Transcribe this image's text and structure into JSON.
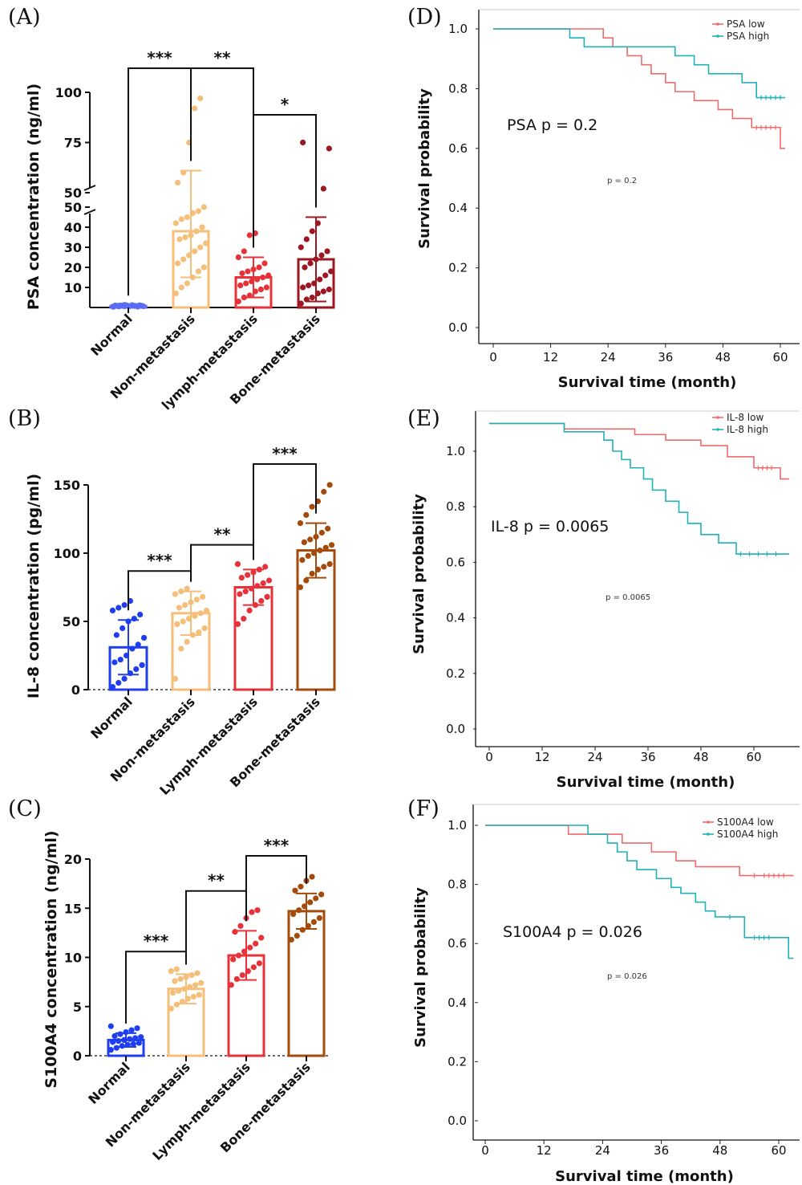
{
  "chart_data": [
    {
      "panel": "(A)",
      "type": "bar",
      "ylabel": "PSA concentration (ng/ml)",
      "categories": [
        "Normal",
        "Non-metastasis",
        "lymph-metastasis",
        "Bone-metastasis"
      ],
      "values": [
        0.8,
        38,
        15,
        24
      ],
      "errors": [
        0.3,
        23,
        10,
        21
      ],
      "colors": [
        "#5b6cf6",
        "#f5be79",
        "#e8323a",
        "#9b1722"
      ],
      "broken_axis": {
        "lower": [
          0,
          50
        ],
        "upper": [
          50,
          100
        ]
      },
      "yticks_lower": [
        "10",
        "20",
        "30",
        "40",
        "50"
      ],
      "yticks_upper": [
        "50",
        "75",
        "100"
      ],
      "points": [
        [
          0.3,
          0.5,
          0.6,
          0.7,
          0.8,
          0.9,
          1.0,
          1.0,
          1.1,
          1.2,
          0.4,
          0.6,
          0.8,
          1.0,
          0.7,
          0.9,
          1.1,
          0.5,
          0.9,
          1.3
        ],
        [
          7,
          10,
          12,
          15,
          18,
          20,
          22,
          24,
          26,
          28,
          30,
          32,
          34,
          35,
          36,
          38,
          40,
          42,
          44,
          45,
          47,
          48,
          50,
          55,
          60,
          75,
          92,
          97
        ],
        [
          3,
          5,
          6,
          8,
          9,
          10,
          11,
          12,
          13,
          14,
          15,
          16,
          17,
          18,
          19,
          20,
          22,
          25,
          28,
          36,
          37
        ],
        [
          2,
          4,
          5,
          7,
          8,
          9,
          10,
          11,
          12,
          14,
          16,
          18,
          20,
          22,
          24,
          26,
          28,
          30,
          34,
          38,
          42,
          52,
          72,
          75
        ]
      ],
      "significance": [
        {
          "from": 0,
          "to": 1,
          "label": "***"
        },
        {
          "from": 1,
          "to": 2,
          "label": "**"
        },
        {
          "from": 2,
          "to": 3,
          "label": "*"
        }
      ]
    },
    {
      "panel": "(B)",
      "type": "bar",
      "ylabel": "IL-8 concentration (pg/ml)",
      "categories": [
        "Normal",
        "Non-metastasis",
        "Lymph-metastasis",
        "Bone-metastasis"
      ],
      "values": [
        31,
        56,
        75,
        102
      ],
      "errors": [
        20,
        16,
        13,
        20
      ],
      "colors": [
        "#1f3ef0",
        "#f5be79",
        "#e8323a",
        "#a44a0a"
      ],
      "ylim": [
        0,
        150
      ],
      "yticks": [
        0,
        50,
        100,
        150
      ],
      "points": [
        [
          2,
          5,
          8,
          12,
          15,
          18,
          20,
          22,
          25,
          30,
          33,
          38,
          40,
          45,
          50,
          52,
          55,
          58,
          60,
          62,
          65
        ],
        [
          8,
          30,
          35,
          40,
          42,
          45,
          48,
          50,
          52,
          54,
          56,
          58,
          60,
          62,
          64,
          66,
          68,
          70,
          72,
          74
        ],
        [
          48,
          52,
          58,
          62,
          65,
          68,
          70,
          72,
          74,
          76,
          78,
          80,
          82,
          84,
          86,
          88,
          90,
          92
        ],
        [
          75,
          80,
          85,
          88,
          90,
          92,
          95,
          98,
          100,
          102,
          104,
          106,
          108,
          110,
          112,
          115,
          118,
          122,
          128,
          134,
          138,
          145,
          150
        ]
      ],
      "significance": [
        {
          "from": 0,
          "to": 1,
          "label": "***"
        },
        {
          "from": 1,
          "to": 2,
          "label": "**"
        },
        {
          "from": 2,
          "to": 3,
          "label": "***"
        }
      ]
    },
    {
      "panel": "(C)",
      "type": "bar",
      "ylabel": "S100A4 concentration (ng/ml)",
      "categories": [
        "Normal",
        "Non-metastasis",
        "Lymph-metastasis",
        "Bone-metastasis"
      ],
      "values": [
        1.6,
        6.8,
        10.2,
        14.7
      ],
      "errors": [
        0.7,
        1.5,
        2.5,
        1.8
      ],
      "colors": [
        "#1f3ef0",
        "#f5be79",
        "#e8323a",
        "#a44a0a"
      ],
      "ylim": [
        0,
        20
      ],
      "yticks": [
        0,
        5,
        10,
        15,
        20
      ],
      "points": [
        [
          0.6,
          0.8,
          1.0,
          1.1,
          1.2,
          1.3,
          1.4,
          1.5,
          1.6,
          1.7,
          1.8,
          1.9,
          2.0,
          2.2,
          2.4,
          2.6,
          2.8,
          3.0
        ],
        [
          4.8,
          5.2,
          5.5,
          5.8,
          6.0,
          6.2,
          6.4,
          6.6,
          6.8,
          7.0,
          7.2,
          7.4,
          7.6,
          7.8,
          8.0,
          8.2,
          8.4,
          8.6,
          8.8
        ],
        [
          7.2,
          7.8,
          8.2,
          8.6,
          9.0,
          9.4,
          9.8,
          10.2,
          10.6,
          11.0,
          11.4,
          12.0,
          12.6,
          13.2,
          14.0,
          14.6,
          14.8
        ],
        [
          11.8,
          12.2,
          12.8,
          13.2,
          13.6,
          14.0,
          14.4,
          14.8,
          15.2,
          15.6,
          16.0,
          16.4,
          16.8,
          17.2,
          17.8,
          18.2
        ]
      ],
      "significance": [
        {
          "from": 0,
          "to": 1,
          "label": "***"
        },
        {
          "from": 1,
          "to": 2,
          "label": "**"
        },
        {
          "from": 2,
          "to": 3,
          "label": "***"
        }
      ]
    },
    {
      "panel": "(D)",
      "type": "line",
      "xlabel": "Survival time (month)",
      "ylabel": "Survival probability",
      "xticks": [
        0,
        12,
        24,
        36,
        48,
        60
      ],
      "yticks": [
        "0.0",
        "0.2",
        "0.4",
        "0.6",
        "0.8",
        "1.0"
      ],
      "xlim": [
        -1,
        61
      ],
      "ylim": [
        0,
        1
      ],
      "annotation": "PSA  p = 0.2",
      "small_annotation": "p = 0.2",
      "legend": [
        "PSA low",
        "PSA high"
      ],
      "series": [
        {
          "name": "PSA low",
          "color": "#ee6b6b",
          "x": [
            0,
            20,
            23,
            25,
            28,
            31,
            33,
            36,
            38,
            42,
            47,
            50,
            54,
            60,
            61
          ],
          "y": [
            1.0,
            1.0,
            0.97,
            0.94,
            0.91,
            0.88,
            0.85,
            0.82,
            0.79,
            0.76,
            0.73,
            0.7,
            0.67,
            0.6,
            0.6
          ],
          "censor_x": [
            55,
            56,
            57,
            58,
            59
          ]
        },
        {
          "name": "PSA high",
          "color": "#1fb2b8",
          "x": [
            0,
            16,
            19,
            38,
            42,
            45,
            52,
            55,
            61
          ],
          "y": [
            1.0,
            0.97,
            0.94,
            0.91,
            0.88,
            0.85,
            0.82,
            0.77,
            0.77
          ],
          "censor_x": [
            56,
            57,
            58,
            59,
            60
          ]
        }
      ]
    },
    {
      "panel": "(E)",
      "type": "line",
      "xlabel": "Survival time (month)",
      "ylabel": "Survival probability",
      "xticks": [
        0,
        12,
        24,
        36,
        48,
        60
      ],
      "yticks": [
        "0.0",
        "0.2",
        "0.4",
        "0.6",
        "0.8",
        "1.0"
      ],
      "xlim": [
        -1,
        68
      ],
      "ylim": [
        0,
        1.15
      ],
      "annotation": "IL-8  p = 0.0065",
      "small_annotation": "p = 0.0065",
      "legend": [
        "IL-8 low",
        "IL-8 high"
      ],
      "series": [
        {
          "name": "IL-8 low",
          "color": "#ee6b6b",
          "x": [
            0,
            17,
            33,
            40,
            48,
            54,
            60,
            66,
            68
          ],
          "y": [
            1.1,
            1.08,
            1.06,
            1.04,
            1.02,
            0.98,
            0.94,
            0.9,
            0.9
          ],
          "censor_x": [
            61,
            62,
            63,
            64
          ]
        },
        {
          "name": "IL-8 high",
          "color": "#1fb2b8",
          "x": [
            0,
            17,
            26,
            28,
            30,
            32,
            35,
            37,
            40,
            43,
            45,
            48,
            52,
            56,
            68
          ],
          "y": [
            1.1,
            1.07,
            1.04,
            1.0,
            0.97,
            0.94,
            0.9,
            0.86,
            0.82,
            0.78,
            0.74,
            0.7,
            0.67,
            0.63,
            0.63
          ],
          "censor_x": [
            57,
            59,
            61,
            63,
            65
          ]
        }
      ]
    },
    {
      "panel": "(F)",
      "type": "line",
      "xlabel": "Survival time (month)",
      "ylabel": "Survival probability",
      "xticks": [
        0,
        12,
        24,
        36,
        48,
        60
      ],
      "yticks": [
        "0.0",
        "0.2",
        "0.4",
        "0.6",
        "0.8",
        "1.0"
      ],
      "xlim": [
        -1,
        63
      ],
      "ylim": [
        0,
        1
      ],
      "annotation": "S100A4  p = 0.026",
      "small_annotation": "p = 0.026",
      "legend": [
        "S100A4 low",
        "S100A4 high"
      ],
      "series": [
        {
          "name": "S100A4 low",
          "color": "#ee6b6b",
          "x": [
            0,
            17,
            19,
            28,
            34,
            39,
            43,
            52,
            63
          ],
          "y": [
            1.0,
            0.97,
            0.97,
            0.94,
            0.91,
            0.88,
            0.86,
            0.83,
            0.83
          ],
          "censor_x": [
            55,
            57,
            58,
            59,
            60,
            61
          ]
        },
        {
          "name": "S100A4 high",
          "color": "#1fb2b8",
          "x": [
            0,
            21,
            25,
            27,
            29,
            31,
            35,
            38,
            40,
            43,
            45,
            47,
            49,
            53,
            62,
            63
          ],
          "y": [
            1.0,
            0.97,
            0.94,
            0.91,
            0.88,
            0.85,
            0.82,
            0.79,
            0.77,
            0.74,
            0.71,
            0.69,
            0.69,
            0.62,
            0.55,
            0.55
          ],
          "censor_x": [
            50,
            55,
            56,
            57,
            58
          ]
        }
      ]
    }
  ]
}
